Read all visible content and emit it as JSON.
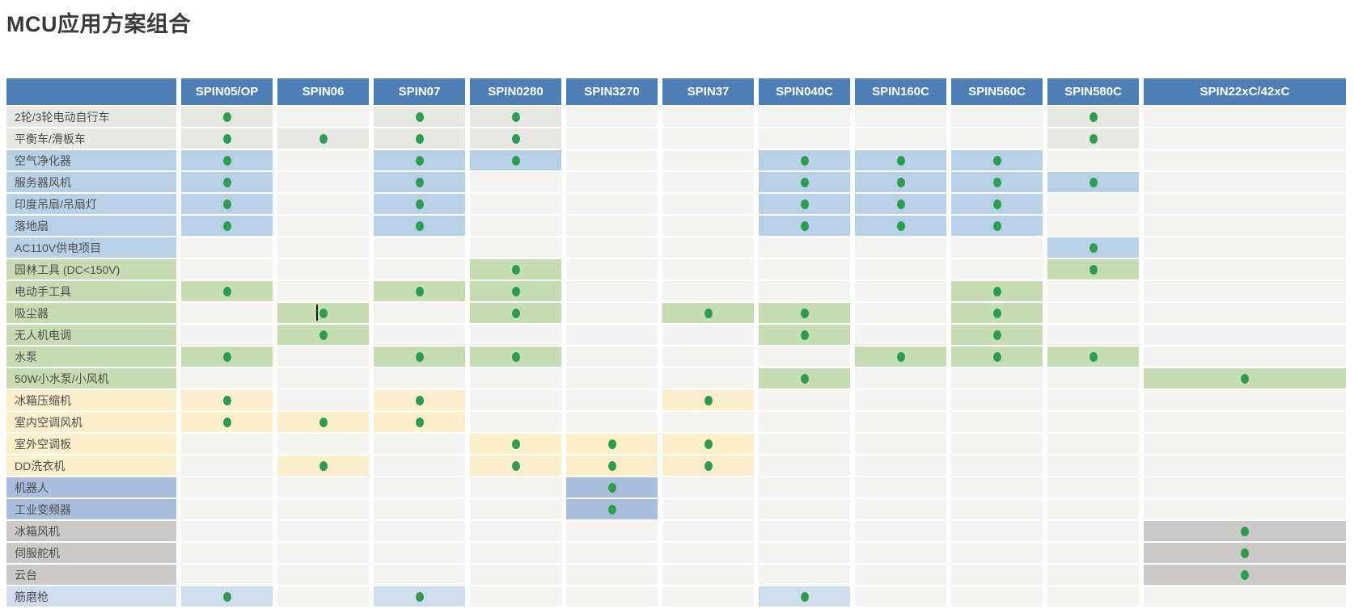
{
  "title": "MCU应用方案组合",
  "colors": {
    "header_bg": "#4d7fb6",
    "header_text": "#ffffff",
    "empty_cell": "#f4f4f2",
    "dot": "#2a9d4f",
    "groups": {
      "gray": "#e7e7e4",
      "blue": "#b9d1e7",
      "green": "#c6ddb4",
      "cream": "#fbeecb",
      "periwinkle": "#a9bddc",
      "gray2": "#cbcac8",
      "lightblue": "#cfdeee"
    }
  },
  "table": {
    "columns": [
      "SPIN05/OP",
      "SPIN06",
      "SPIN07",
      "SPIN0280",
      "SPIN3270",
      "SPIN37",
      "SPIN040C",
      "SPIN160C",
      "SPIN560C",
      "SPIN580C",
      "SPIN22xC/42xC"
    ],
    "rows": [
      {
        "label": "2轮/3轮电动自行车",
        "group": "gray",
        "dots": [
          0,
          2,
          3,
          9
        ]
      },
      {
        "label": "平衡车/滑板车",
        "group": "gray",
        "dots": [
          0,
          1,
          2,
          3,
          9
        ]
      },
      {
        "label": "空气净化器",
        "group": "blue",
        "dots": [
          0,
          2,
          3,
          6,
          7,
          8
        ]
      },
      {
        "label": "服务器风机",
        "group": "blue",
        "dots": [
          0,
          2,
          6,
          7,
          8,
          9
        ]
      },
      {
        "label": "印度吊扇/吊扇灯",
        "group": "blue",
        "dots": [
          0,
          2,
          6,
          7,
          8
        ]
      },
      {
        "label": "落地扇",
        "group": "blue",
        "dots": [
          0,
          2,
          6,
          7,
          8
        ]
      },
      {
        "label": "AC110V供电项目",
        "group": "blue",
        "dots": [
          9
        ]
      },
      {
        "label": "园林工具 (DC<150V)",
        "group": "green",
        "dots": [
          3,
          9
        ]
      },
      {
        "label": "电动手工具",
        "group": "green",
        "dots": [
          0,
          2,
          3,
          8
        ]
      },
      {
        "label": "吸尘器",
        "group": "green",
        "dots": [
          1,
          3,
          5,
          6,
          8
        ]
      },
      {
        "label": "无人机电调",
        "group": "green",
        "dots": [
          1,
          6,
          8
        ]
      },
      {
        "label": "水泵",
        "group": "green",
        "dots": [
          0,
          2,
          3,
          7,
          8,
          9
        ]
      },
      {
        "label": "50W小水泵/小风机",
        "group": "green",
        "dots": [
          6,
          10
        ]
      },
      {
        "label": "冰箱压缩机",
        "group": "cream",
        "dots": [
          0,
          2,
          5
        ]
      },
      {
        "label": "室内空调风机",
        "group": "cream",
        "dots": [
          0,
          1,
          2
        ]
      },
      {
        "label": "室外空调板",
        "group": "cream",
        "dots": [
          3,
          4,
          5
        ]
      },
      {
        "label": "DD洗衣机",
        "group": "cream",
        "dots": [
          1,
          3,
          4,
          5
        ]
      },
      {
        "label": "机器人",
        "group": "periwinkle",
        "dots": [
          4
        ]
      },
      {
        "label": "工业变频器",
        "group": "periwinkle",
        "dots": [
          4
        ]
      },
      {
        "label": "冰箱风机",
        "group": "gray2",
        "dots": [
          10
        ]
      },
      {
        "label": "伺服舵机",
        "group": "gray2",
        "dots": [
          10
        ]
      },
      {
        "label": "云台",
        "group": "gray2",
        "dots": [
          10
        ]
      },
      {
        "label": "筋磨枪",
        "group": "lightblue",
        "dots": [
          0,
          2,
          6
        ]
      }
    ]
  },
  "artifacts": {
    "text_cursor": {
      "row_index": 9,
      "col_index": 1
    }
  }
}
